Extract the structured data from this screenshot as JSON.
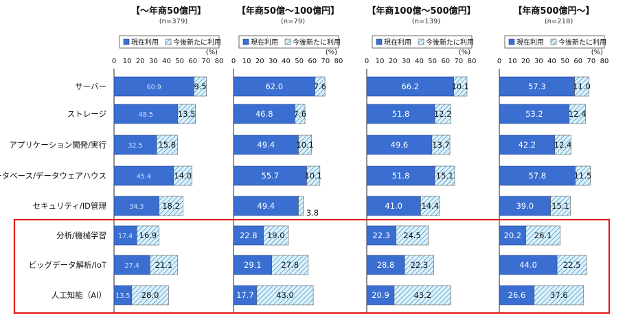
{
  "colors": {
    "current": "#3a6fd1",
    "current_stroke": "#1f3f8a",
    "future": "#dff1fb",
    "future_hatch": "#2a8fc4",
    "highlight_box": "#e11919",
    "axis": "#222222"
  },
  "legend": {
    "current": "現在利用",
    "future": "今後新たに利用"
  },
  "unit_label": "(%)",
  "chart_data": {
    "type": "bar",
    "orientation": "horizontal",
    "stacked": true,
    "categories": [
      "サーバー",
      "ストレージ",
      "アプリケーション開発/実行",
      "データベース/データウェアハウス",
      "セキュリティ/ID管理",
      "分析/機械学習",
      "ビッグデータ解析/IoT",
      "人工知能（AI）"
    ],
    "highlighted_categories": [
      "分析/機械学習",
      "ビッグデータ解析/IoT",
      "人工知能（AI）"
    ],
    "xlim": [
      0,
      80
    ],
    "xticks": [
      0,
      10,
      20,
      30,
      40,
      50,
      60,
      70,
      80
    ],
    "legend_placement": "top",
    "panels": [
      {
        "title": "【～年商50億円】",
        "n": "(n=379)",
        "series": [
          {
            "name": "現在利用",
            "values": [
              60.9,
              48.5,
              32.5,
              45.4,
              34.3,
              17.4,
              27.4,
              13.5
            ]
          },
          {
            "name": "今後新たに利用",
            "values": [
              9.5,
              13.5,
              15.8,
              14.0,
              18.2,
              16.9,
              21.1,
              28.0
            ]
          }
        ]
      },
      {
        "title": "【年商50億～100億円】",
        "n": "(n=79)",
        "series": [
          {
            "name": "現在利用",
            "values": [
              62.0,
              46.8,
              49.4,
              55.7,
              49.4,
              22.8,
              29.1,
              17.7
            ]
          },
          {
            "name": "今後新たに利用",
            "values": [
              7.6,
              7.6,
              10.1,
              10.1,
              3.8,
              19.0,
              27.8,
              43.0
            ]
          }
        ]
      },
      {
        "title": "【年商100億～500億円】",
        "n": "(n=139)",
        "series": [
          {
            "name": "現在利用",
            "values": [
              66.2,
              51.8,
              49.6,
              51.8,
              41.0,
              22.3,
              28.8,
              20.9
            ]
          },
          {
            "name": "今後新たに利用",
            "values": [
              10.1,
              12.2,
              13.7,
              15.1,
              14.4,
              24.5,
              22.3,
              43.2
            ]
          }
        ]
      },
      {
        "title": "【年商500億円～】",
        "n": "(n=218)",
        "series": [
          {
            "name": "現在利用",
            "values": [
              57.3,
              53.2,
              42.2,
              57.8,
              39.0,
              20.2,
              44.0,
              26.6
            ]
          },
          {
            "name": "今後新たに利用",
            "values": [
              11.0,
              12.4,
              12.4,
              11.5,
              15.1,
              26.1,
              22.5,
              37.6
            ]
          }
        ]
      }
    ]
  }
}
